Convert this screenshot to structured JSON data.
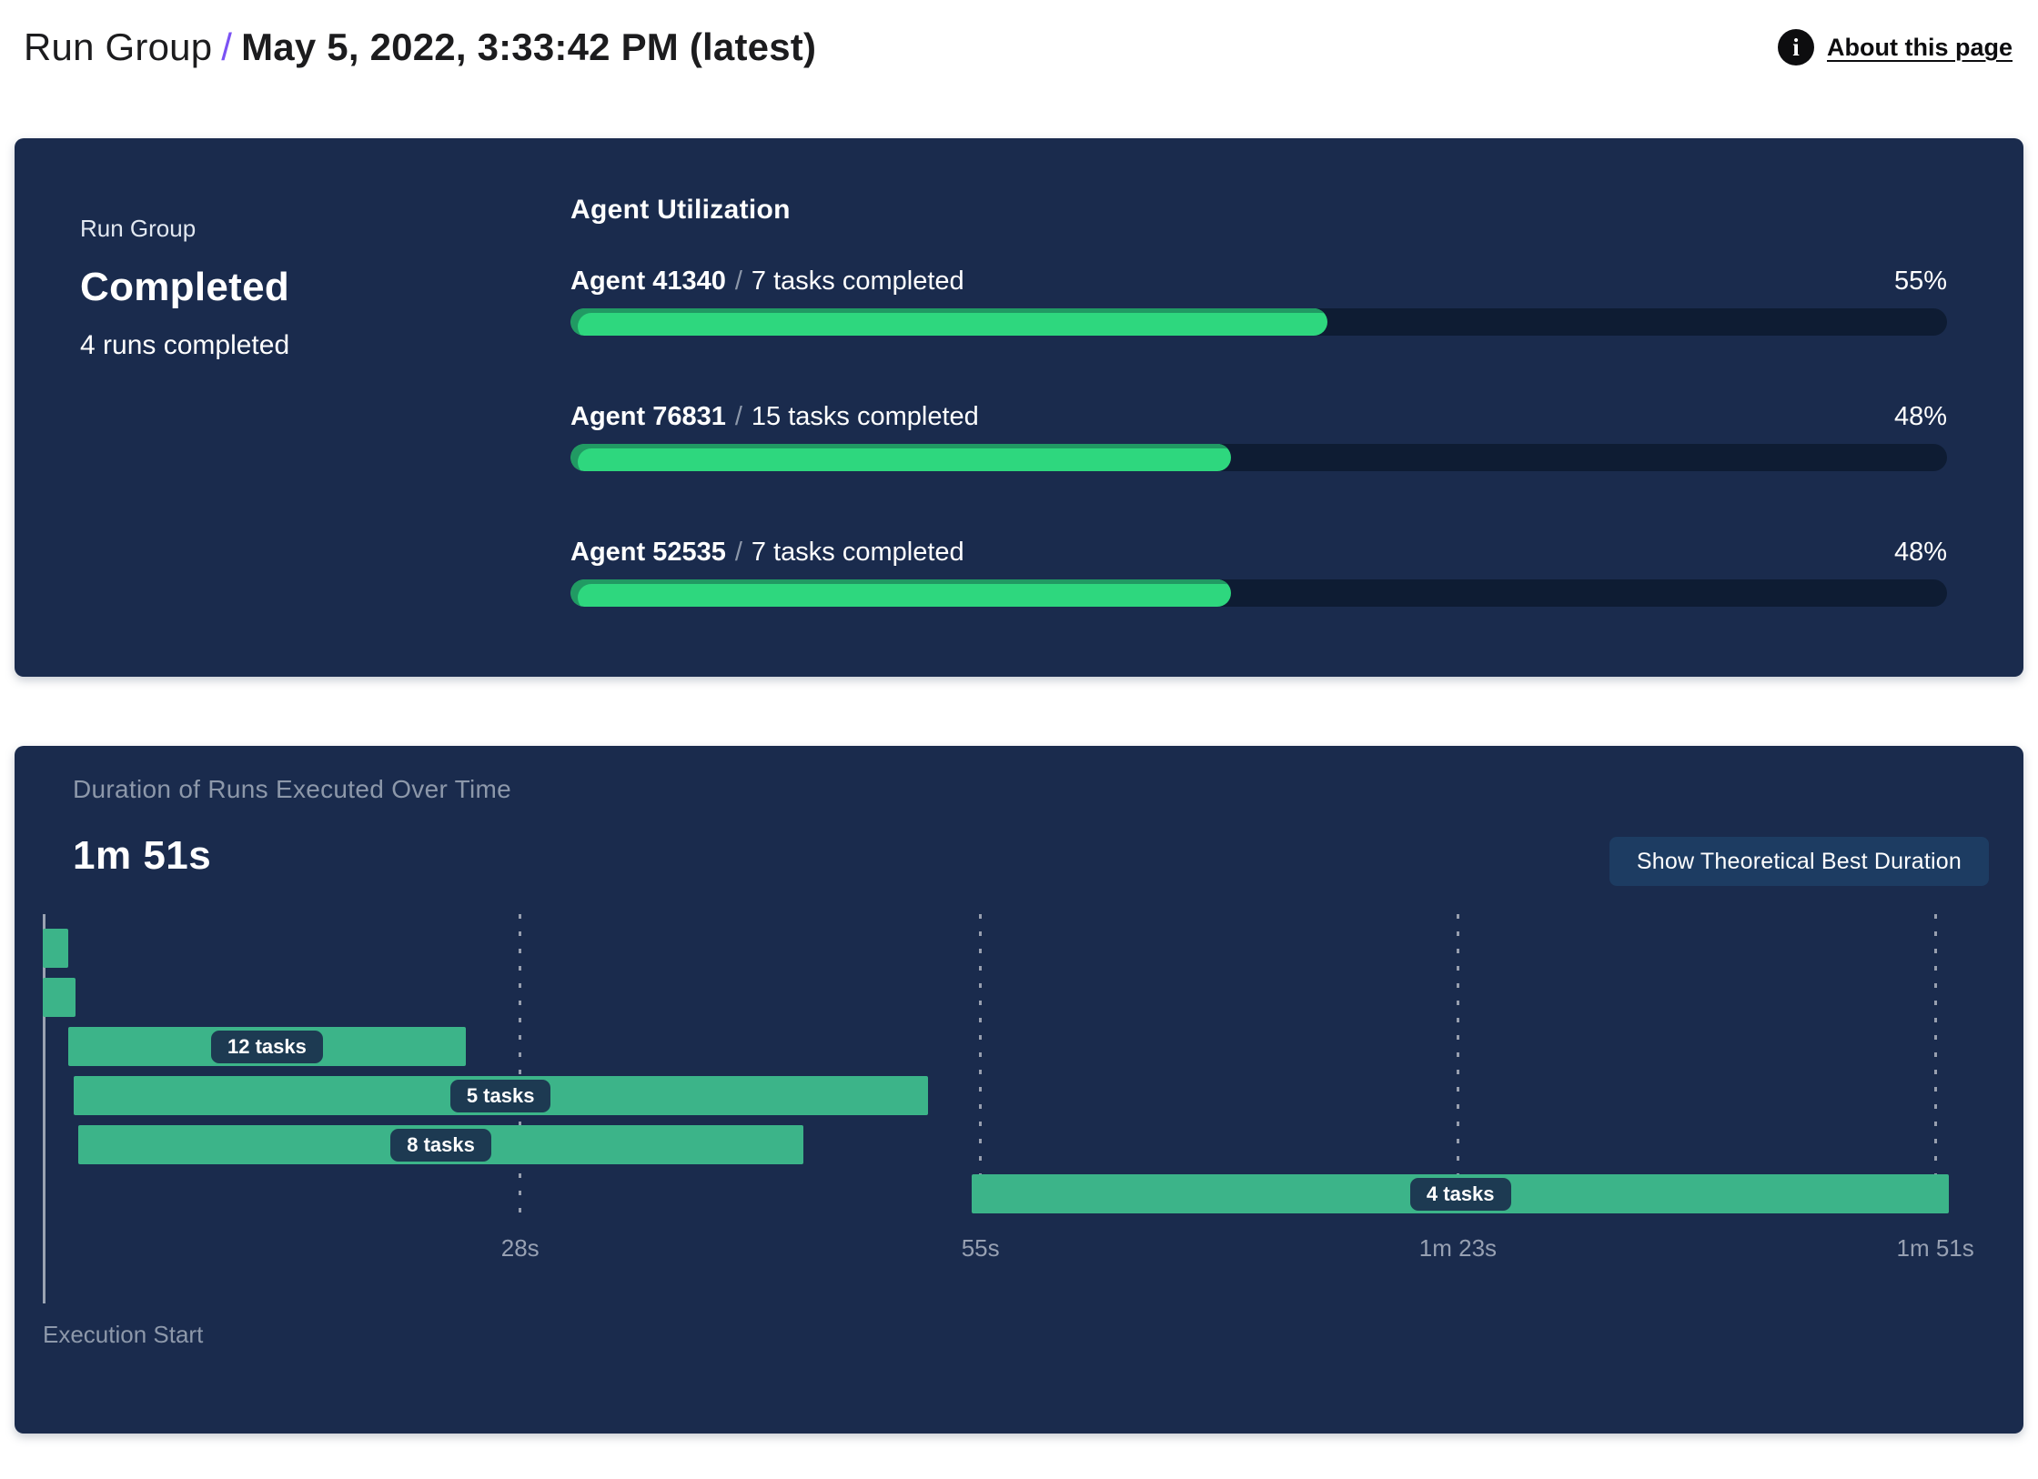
{
  "header": {
    "breadcrumb_root": "Run Group",
    "separator": "/",
    "run_title": "May 5, 2022, 3:33:42 PM (latest)",
    "about_link": "About this page"
  },
  "summary": {
    "label": "Run Group",
    "status": "Completed",
    "detail": "4 runs completed"
  },
  "utilization_panel": {
    "title": "Agent Utilization",
    "separator": "/"
  },
  "duration_panel": {
    "title": "Duration of Runs Executed Over Time",
    "total_duration": "1m 51s",
    "button_label": "Show Theoretical Best Duration",
    "origin_label": "Execution Start"
  },
  "colors": {
    "panel": "#1a2b4d",
    "track": "#0e1c33",
    "progress": "#2ed77e",
    "progress-edge": "#219a63",
    "gantt-bar": "#3cb489",
    "pill-bg": "#1d3a52",
    "accent": "#7b52f4",
    "button-bg": "#1d3c62",
    "muted": "#8d98aa",
    "axis": "#9aa3b2"
  },
  "chart_data": [
    {
      "type": "bar",
      "title": "Agent Utilization",
      "orientation": "horizontal",
      "unit": "percent",
      "xlim": [
        0,
        100
      ],
      "agents": [
        {
          "name": "Agent 41340",
          "tasks_completed": 7,
          "tasks_label": "7 tasks completed",
          "utilization_pct": 55
        },
        {
          "name": "Agent 76831",
          "tasks_completed": 15,
          "tasks_label": "15 tasks completed",
          "utilization_pct": 48
        },
        {
          "name": "Agent 52535",
          "tasks_completed": 7,
          "tasks_label": "7 tasks completed",
          "utilization_pct": 48
        }
      ]
    },
    {
      "type": "gantt",
      "title": "Duration of Runs Executed Over Time",
      "total_duration_label": "1m 51s",
      "total_duration_seconds": 111,
      "x_axis_origin_label": "Execution Start",
      "x_ticks": [
        {
          "seconds": 28,
          "label": "28s"
        },
        {
          "seconds": 55,
          "label": "55s"
        },
        {
          "seconds": 83,
          "label": "1m 23s"
        },
        {
          "seconds": 111,
          "label": "1m 51s"
        }
      ],
      "runs": [
        {
          "start_s": 0,
          "end_s": 1.5,
          "tasks": null,
          "label": ""
        },
        {
          "start_s": 0,
          "end_s": 1.9,
          "tasks": null,
          "label": ""
        },
        {
          "start_s": 1.5,
          "end_s": 24.8,
          "tasks": 12,
          "label": "12 tasks"
        },
        {
          "start_s": 1.8,
          "end_s": 51.9,
          "tasks": 5,
          "label": "5 tasks"
        },
        {
          "start_s": 2.1,
          "end_s": 44.6,
          "tasks": 8,
          "label": "8 tasks"
        },
        {
          "start_s": 54.5,
          "end_s": 111.8,
          "tasks": 4,
          "label": "4 tasks"
        }
      ]
    }
  ]
}
